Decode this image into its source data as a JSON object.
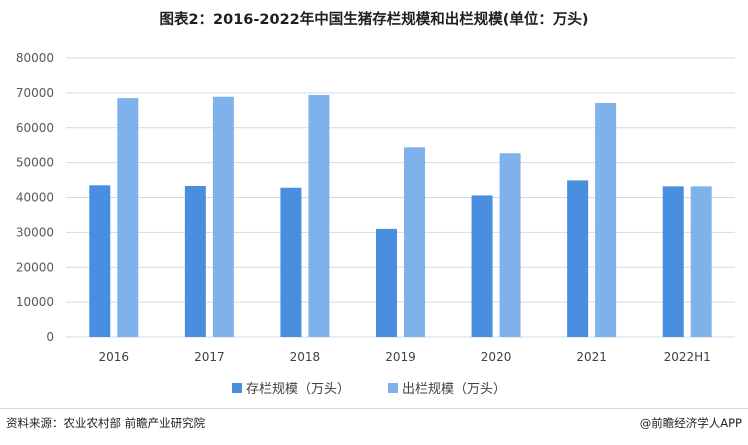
{
  "header": {
    "title": "图表2：2016-2022年中国生猪存栏规模和出栏规模(单位：万头)"
  },
  "footer": {
    "source": "资料来源：农业农村部 前瞻产业研究院",
    "credit": "@前瞻经济学人APP"
  },
  "colors": {
    "series1": "#4a8fdf",
    "series2": "#7fb2ea",
    "grid": "#d9d9d9"
  },
  "chart_data": {
    "type": "bar",
    "title": "图表2：2016-2022年中国生猪存栏规模和出栏规模(单位：万头)",
    "xlabel": "",
    "ylabel": "",
    "ylim": [
      0,
      80000
    ],
    "yticks": [
      0,
      10000,
      20000,
      30000,
      40000,
      50000,
      60000,
      70000,
      80000
    ],
    "grid": true,
    "legend_position": "bottom",
    "categories": [
      "2016",
      "2017",
      "2018",
      "2019",
      "2020",
      "2021",
      "2022H1"
    ],
    "series": [
      {
        "name": "存栏规模（万头）",
        "values": [
          43500,
          43300,
          42800,
          31000,
          40600,
          44900,
          43200
        ]
      },
      {
        "name": "出栏规模（万头）",
        "values": [
          68500,
          68900,
          69400,
          54400,
          52700,
          67100,
          43200
        ]
      }
    ]
  }
}
